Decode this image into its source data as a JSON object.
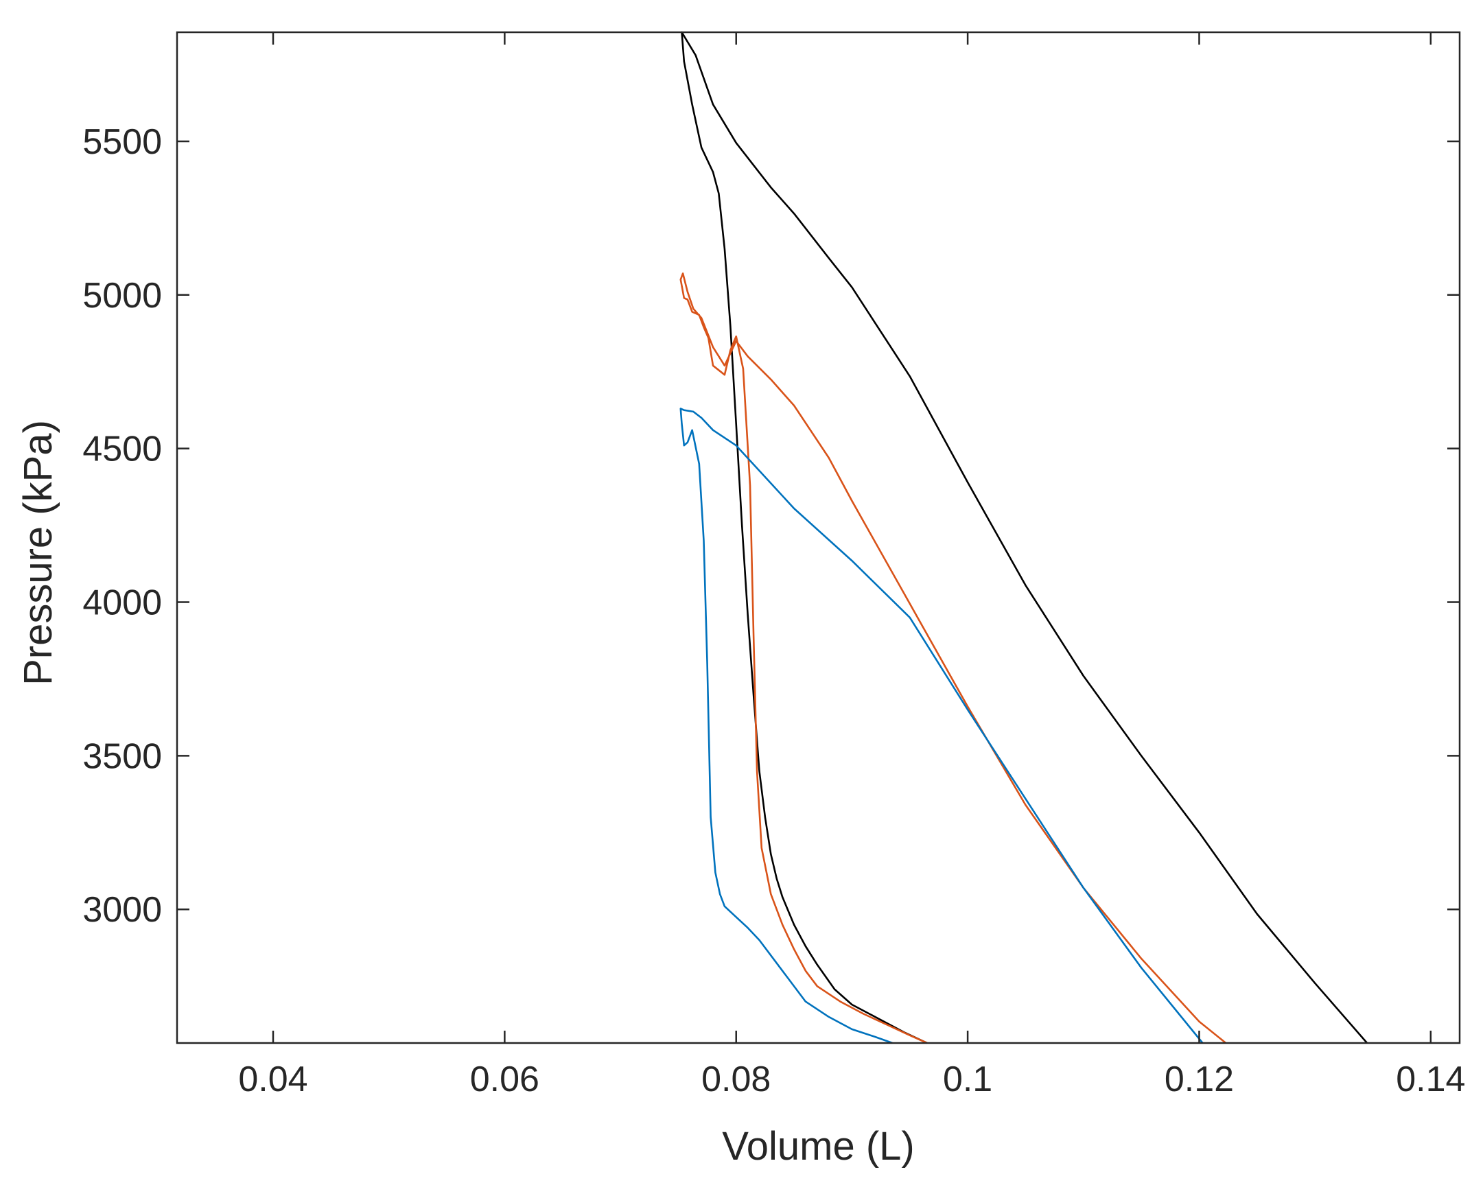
{
  "chart_data": {
    "type": "line",
    "xlabel": "Volume (L)",
    "ylabel": "Pressure (kPa)",
    "xlim": [
      0.0317,
      0.1425
    ],
    "ylim": [
      2565,
      5855
    ],
    "xticks": [
      0.04,
      0.06,
      0.08,
      0.1,
      0.12,
      0.14
    ],
    "xtick_labels": [
      "0.04",
      "0.06",
      "0.08",
      "0.1",
      "0.12",
      "0.14"
    ],
    "yticks": [
      3000,
      3500,
      4000,
      4500,
      5000,
      5500
    ],
    "ytick_labels": [
      "3000",
      "3500",
      "4000",
      "4500",
      "5000",
      "5500"
    ],
    "grid": false,
    "box": true,
    "legend": "none",
    "series": [
      {
        "color": "#000000",
        "x": [
          0.1345,
          0.13,
          0.125,
          0.12,
          0.115,
          0.11,
          0.105,
          0.1,
          0.095,
          0.09,
          0.088,
          0.085,
          0.083,
          0.08,
          0.078,
          0.0765,
          0.0753,
          0.0755,
          0.0762,
          0.077,
          0.078,
          0.0785,
          0.079,
          0.0795,
          0.08,
          0.0805,
          0.081,
          0.0815,
          0.082,
          0.0825,
          0.083,
          0.0835,
          0.084,
          0.085,
          0.086,
          0.087,
          0.0885,
          0.09,
          0.092,
          0.0945,
          0.0965
        ],
        "y": [
          2565,
          2760,
          2985,
          3250,
          3500,
          3760,
          4055,
          4390,
          4735,
          5025,
          5120,
          5265,
          5350,
          5495,
          5620,
          5780,
          5855,
          5760,
          5620,
          5480,
          5400,
          5330,
          5150,
          4900,
          4580,
          4250,
          3960,
          3700,
          3450,
          3300,
          3180,
          3100,
          3040,
          2950,
          2880,
          2820,
          2740,
          2690,
          2650,
          2600,
          2565
        ]
      },
      {
        "color": "#d95319",
        "x": [
          0.1223,
          0.12,
          0.115,
          0.11,
          0.105,
          0.1,
          0.095,
          0.09,
          0.088,
          0.085,
          0.083,
          0.081,
          0.08,
          0.079,
          0.078,
          0.077,
          0.0763,
          0.0758,
          0.0754,
          0.0752,
          0.0755,
          0.0758,
          0.0762,
          0.0768,
          0.0772,
          0.0776,
          0.078,
          0.079,
          0.0795,
          0.08,
          0.0806,
          0.0812,
          0.0815,
          0.0818,
          0.0822,
          0.083,
          0.084,
          0.085,
          0.086,
          0.087,
          0.089,
          0.091,
          0.093,
          0.095,
          0.0965
        ],
        "y": [
          2565,
          2635,
          2840,
          3070,
          3340,
          3660,
          3995,
          4330,
          4470,
          4640,
          4725,
          4800,
          4850,
          4770,
          4830,
          4925,
          4955,
          5010,
          5070,
          5050,
          4990,
          4985,
          4945,
          4935,
          4895,
          4860,
          4770,
          4740,
          4820,
          4865,
          4760,
          4380,
          3900,
          3450,
          3200,
          3050,
          2950,
          2870,
          2800,
          2750,
          2700,
          2660,
          2625,
          2590,
          2565
        ]
      },
      {
        "color": "#0072bd",
        "x": [
          0.1203,
          0.115,
          0.11,
          0.105,
          0.1,
          0.095,
          0.09,
          0.085,
          0.08,
          0.078,
          0.077,
          0.0763,
          0.0755,
          0.0752,
          0.0753,
          0.0755,
          0.0758,
          0.0762,
          0.0768,
          0.0772,
          0.0775,
          0.0778,
          0.0782,
          0.0786,
          0.079,
          0.08,
          0.081,
          0.082,
          0.084,
          0.086,
          0.088,
          0.09,
          0.092,
          0.0935
        ],
        "y": [
          2565,
          2810,
          3070,
          3360,
          3650,
          3950,
          4135,
          4305,
          4510,
          4560,
          4600,
          4620,
          4625,
          4630,
          4580,
          4510,
          4520,
          4560,
          4450,
          4200,
          3800,
          3300,
          3120,
          3050,
          3010,
          2975,
          2940,
          2900,
          2800,
          2700,
          2650,
          2610,
          2585,
          2565
        ]
      }
    ]
  }
}
